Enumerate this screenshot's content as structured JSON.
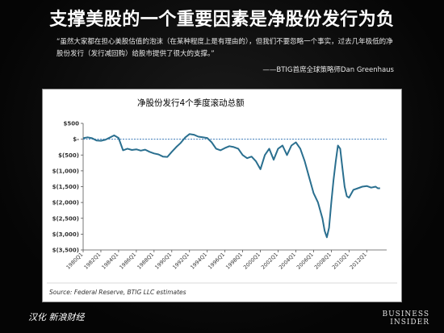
{
  "slide": {
    "title": "支撑美股的一个重要因素是净股份发行为负",
    "quote": "“虽然大家都在担心美股估值的泡沫（在某种程度上是有理由的），但我们不要忽略一个事实，过去几年极低的净股份发行（发行减回购）给股市提供了很大的支撑。”",
    "quote_author": "——BTIG首席全球策略师Dan Greenhaus",
    "footer_left": "汉化 新浪财经",
    "brand_line1": "BUSINESS",
    "brand_line2": "INSIDER"
  },
  "chart_data": {
    "type": "line",
    "title": "净股份发行4个季度滚动总额",
    "source": "Source: Federal Reserve, BTIG LLC estimates",
    "ylim": [
      -3500,
      500
    ],
    "yticks": [
      500,
      0,
      -500,
      -1000,
      -1500,
      -2000,
      -2500,
      -3000,
      -3500
    ],
    "ytick_labels": [
      "$500",
      "$-",
      "$(500)",
      "$(1,000)",
      "$(1,500)",
      "$(2,000)",
      "$(2,500)",
      "$(3,000)",
      "$(3,500)"
    ],
    "xlim": [
      1980,
      2014.25
    ],
    "xtick_labels": [
      "1980Q1",
      "1982Q1",
      "1984Q1",
      "1986Q1",
      "1988Q1",
      "1990Q1",
      "1992Q1",
      "1994Q1",
      "1996Q1",
      "1998Q1",
      "2000Q1",
      "2002Q1",
      "2004Q1",
      "2006Q1",
      "2008Q1",
      "2010Q1",
      "2012Q1"
    ],
    "colors": {
      "line": "#2a6f8f",
      "zero_line": "#3a7ab8"
    },
    "series": [
      {
        "x": [
          1980,
          1980.5,
          1981,
          1981.5,
          1982,
          1982.5,
          1983,
          1983.5,
          1984,
          1984.5,
          1985,
          1985.5,
          1986,
          1986.5,
          1987,
          1987.5,
          1988,
          1988.5,
          1989,
          1989.5,
          1990,
          1990.5,
          1991,
          1991.5,
          1992,
          1992.5,
          1993,
          1993.5,
          1994,
          1994.5,
          1995,
          1995.5,
          1996,
          1996.5,
          1997,
          1997.5,
          1998,
          1998.5,
          1999,
          1999.5,
          2000,
          2000.5,
          2001,
          2001.5,
          2002,
          2002.5,
          2003,
          2003.5,
          2004,
          2004.5,
          2005,
          2005.5,
          2006,
          2006.5,
          2007,
          2007.25,
          2007.5,
          2007.75,
          2008,
          2008.25,
          2008.5,
          2008.75,
          2009,
          2009.25,
          2009.5,
          2009.75,
          2010,
          2010.5,
          2011,
          2011.5,
          2012,
          2012.5,
          2013,
          2013.25,
          2013.5
        ],
        "y": [
          30,
          60,
          30,
          -40,
          -50,
          -20,
          50,
          120,
          40,
          -350,
          -300,
          -340,
          -320,
          -360,
          -330,
          -400,
          -450,
          -480,
          -550,
          -560,
          -400,
          -250,
          -120,
          50,
          160,
          140,
          80,
          60,
          40,
          -100,
          -300,
          -350,
          -280,
          -220,
          -250,
          -300,
          -500,
          -600,
          -550,
          -700,
          -950,
          -500,
          -300,
          -650,
          -300,
          -200,
          -500,
          -200,
          -100,
          -300,
          -700,
          -1200,
          -1700,
          -2000,
          -2500,
          -2900,
          -3100,
          -2800,
          -2000,
          -1300,
          -700,
          -200,
          -300,
          -900,
          -1500,
          -1800,
          -1850,
          -1600,
          -1550,
          -1500,
          -1480,
          -1530,
          -1500,
          -1550,
          -1550
        ]
      }
    ]
  }
}
